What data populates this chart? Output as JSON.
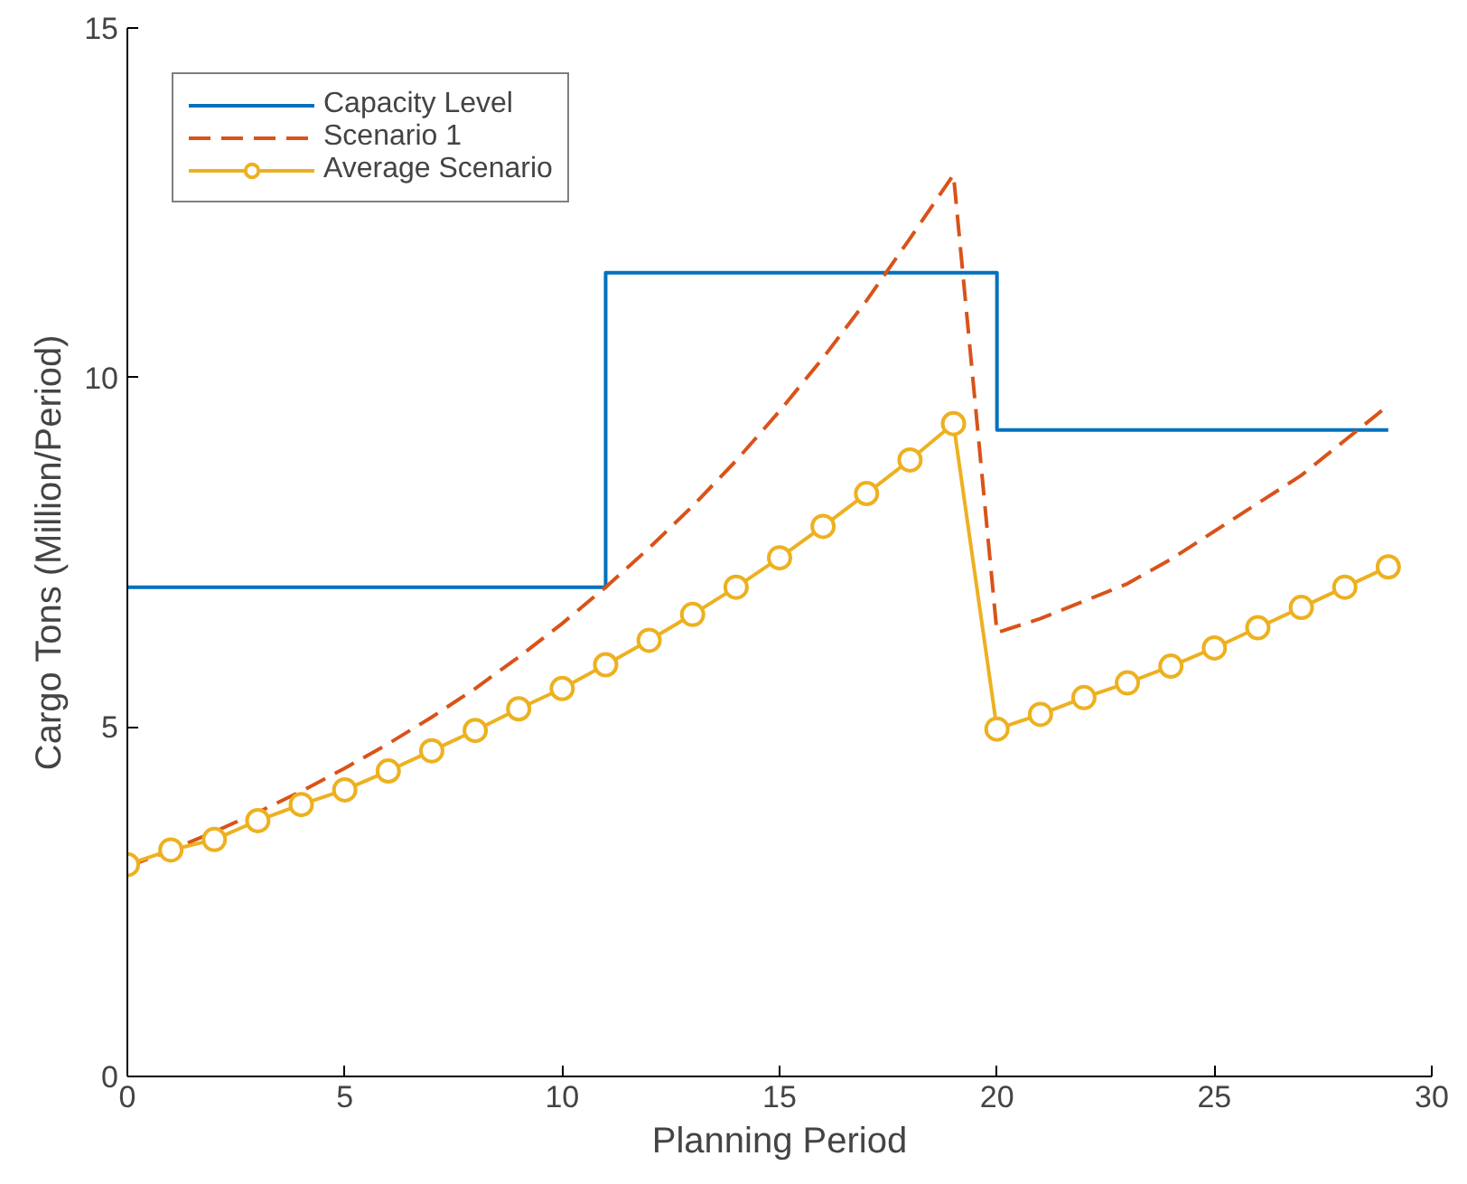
{
  "chart_data": {
    "type": "line",
    "xlabel": "Planning Period",
    "ylabel": "Cargo Tons (Million/Period)",
    "x": [
      0,
      1,
      2,
      3,
      4,
      5,
      6,
      7,
      8,
      9,
      10,
      11,
      12,
      13,
      14,
      15,
      16,
      17,
      18,
      19,
      20,
      21,
      22,
      23,
      24,
      25,
      26,
      27,
      28,
      29
    ],
    "xlim": [
      0,
      30
    ],
    "xticks": [
      0,
      5,
      10,
      15,
      20,
      25,
      30
    ],
    "ylim": [
      0,
      15
    ],
    "yticks": [
      0,
      5,
      10,
      15
    ],
    "grid": false,
    "legend": "top left",
    "series": [
      {
        "name": "Capacity Level",
        "type": "step",
        "color": "#0072bd",
        "line_style": "solid",
        "marker": "none",
        "x": [
          0,
          11,
          20,
          29
        ],
        "values": [
          7.0,
          11.5,
          9.25,
          9.25
        ]
      },
      {
        "name": "Scenario 1",
        "color": "#d95319",
        "line_style": "dashed",
        "marker": "none",
        "values": [
          3.0,
          3.24,
          3.5,
          3.78,
          4.08,
          4.41,
          4.76,
          5.14,
          5.55,
          6.0,
          6.48,
          7.0,
          7.56,
          8.16,
          8.81,
          9.52,
          10.28,
          11.1,
          11.99,
          12.9,
          6.35,
          6.55,
          6.8,
          7.05,
          7.4,
          7.8,
          8.2,
          8.6,
          9.1,
          9.6
        ]
      },
      {
        "name": "Average Scenario",
        "color": "#edb120",
        "line_style": "solid",
        "marker": "circle",
        "values": [
          3.03,
          3.24,
          3.39,
          3.66,
          3.89,
          4.1,
          4.37,
          4.66,
          4.95,
          5.26,
          5.55,
          5.89,
          6.24,
          6.61,
          7.0,
          7.42,
          7.87,
          8.34,
          8.82,
          9.34,
          4.97,
          5.18,
          5.42,
          5.63,
          5.87,
          6.13,
          6.42,
          6.71,
          7.0,
          7.29
        ]
      }
    ]
  }
}
